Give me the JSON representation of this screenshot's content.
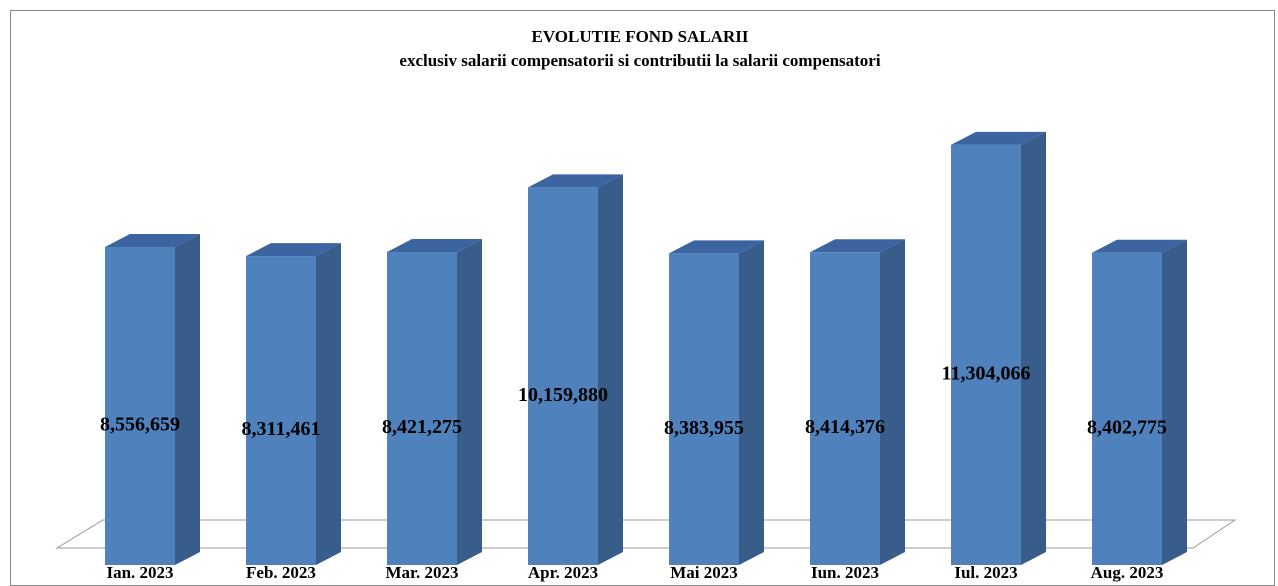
{
  "chart_data": {
    "type": "bar3d",
    "title": "EVOLUTIE FOND SALARII",
    "subtitle": "exclusiv salarii compensatorii si contributii la salarii compensatori",
    "categories": [
      "Ian. 2023",
      "Feb. 2023",
      "Mar. 2023",
      "Apr. 2023",
      "Mai 2023",
      "Iun. 2023",
      "Iul. 2023",
      "Aug. 2023"
    ],
    "values": [
      8556659,
      8311461,
      8421275,
      10159880,
      8383955,
      8414376,
      11304066,
      8402775
    ],
    "value_labels": [
      "8,556,659",
      "8,311,461",
      "8,421,275",
      "10,159,880",
      "8,383,955",
      "8,414,376",
      "11,304,066",
      "8,402,775"
    ],
    "color": "#4f81bd",
    "ylim": [
      0,
      12000000
    ]
  }
}
